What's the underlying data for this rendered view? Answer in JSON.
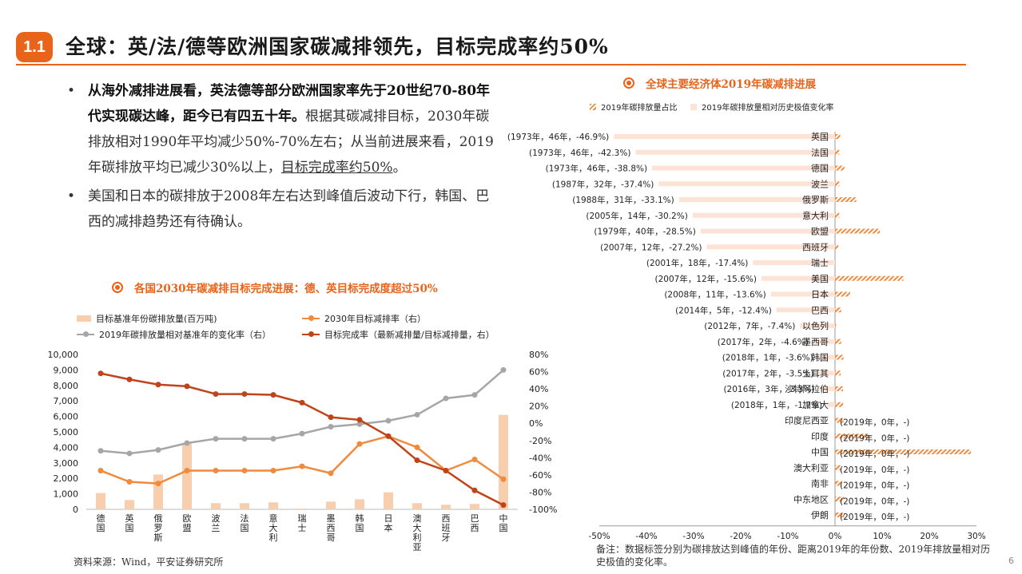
{
  "header": {
    "badge": "1.1",
    "title": "全球：英/法/德等欧洲国家碳减排领先，目标完成率约50%"
  },
  "bullets": {
    "b1_bold": "从海外减排进展看，英法德等部分欧洲国家率先于20世纪70-80年代实现碳达峰，距今已有四五十年。",
    "b1_rest": "根据其碳减排目标，2030年碳排放相对1990年平均减少50%-70%左右；从当前进展来看，2019年碳排放平均已减少30%以上，",
    "b1_underline": "目标完成率约50%",
    "b1_end": "。",
    "b2": "美国和日本的碳排放于2008年左右达到峰值后波动下行，韩国、巴西的减排趋势还有待确认。"
  },
  "left_chart_title": "各国2030年碳减排目标完成进展：德、英目标完成度超过50%",
  "right_chart_title": "全球主要经济体2019年碳减排进展",
  "source": "资料来源：Wind，平安证券研究所",
  "note": "备注：数据标签分别为碳排放达到峰值的年份、距离2019年的年份数、2019年排放量相对历史极值的变化率。",
  "page_number": "6",
  "colors": {
    "accent": "#e8641b",
    "bar_light": "#f7cfae",
    "line_orange": "#f08a3c",
    "line_gray": "#a6a6a6",
    "line_dark": "#c0431a",
    "bar_pink": "#fde3d5"
  },
  "chart_data": [
    {
      "type": "bar",
      "combo": "bar+line",
      "title": "各国2030年碳减排目标完成进展：德、英目标完成度超过50%",
      "categories": [
        "德国",
        "英国",
        "俄罗斯",
        "欧盟",
        "波兰",
        "法国",
        "意大利",
        "瑞士",
        "墨西哥",
        "韩国",
        "日本",
        "澳大利亚",
        "西班牙",
        "巴西",
        "中国"
      ],
      "ylim_left": [
        0,
        10000
      ],
      "yticks_left": [
        "0",
        "1,000",
        "2,000",
        "3,000",
        "4,000",
        "5,000",
        "6,000",
        "7,000",
        "8,000",
        "9,000",
        "10,000"
      ],
      "ylim_right": [
        -100,
        80
      ],
      "yticks_right": [
        "-100%",
        "-80%",
        "-60%",
        "-40%",
        "-20%",
        "0%",
        "20%",
        "40%",
        "60%",
        "80%"
      ],
      "legend_position": "top",
      "series": [
        {
          "name": "目标基准年份碳排放量(百万吨)",
          "kind": "bar",
          "axis": "left",
          "values": [
            1050,
            600,
            2250,
            4300,
            400,
            400,
            450,
            50,
            500,
            650,
            1100,
            400,
            300,
            350,
            6100
          ]
        },
        {
          "name": "2030年目标减排率（右）",
          "kind": "line",
          "axis": "right",
          "values": [
            -55,
            -68,
            -70,
            -55,
            -55,
            -55,
            -55,
            -50,
            -58,
            -24,
            -15,
            -28,
            -55,
            -42,
            -65
          ]
        },
        {
          "name": "2019年碳排放量相对基准年的变化率（右）",
          "kind": "line",
          "axis": "right",
          "values": [
            -32,
            -35,
            -31,
            -23,
            -18,
            -18,
            -18,
            -12,
            -4,
            -1,
            3,
            10,
            29,
            33,
            62
          ]
        },
        {
          "name": "目标完成率（最新减排量/目标减排量，右）",
          "kind": "line",
          "axis": "right",
          "values": [
            58,
            51,
            45,
            43,
            34,
            34,
            33,
            24,
            7,
            4,
            -15,
            -43,
            -55,
            -78,
            -95
          ]
        }
      ]
    },
    {
      "type": "bar",
      "orientation": "horizontal",
      "title": "全球主要经济体2019年碳减排进展",
      "xlim": [
        -50,
        30
      ],
      "xticks": [
        "-50%",
        "-40%",
        "-30%",
        "-20%",
        "-10%",
        "0%",
        "10%",
        "20%",
        "30%"
      ],
      "legend_position": "top-left",
      "categories": [
        "英国",
        "法国",
        "德国",
        "波兰",
        "俄罗斯",
        "意大利",
        "欧盟",
        "西班牙",
        "瑞士",
        "美国",
        "日本",
        "巴西",
        "以色列",
        "墨西哥",
        "韩国",
        "土耳其",
        "沙特阿拉伯",
        "加拿大",
        "印度尼西亚",
        "印度",
        "中国",
        "澳大利亚",
        "南非",
        "中东地区",
        "伊朗"
      ],
      "data_labels": [
        "(1973年，46年，-46.9%)",
        "(1973年，46年，-42.3%)",
        "(1973年，46年，-38.8%)",
        "(1987年，32年，-37.4%)",
        "(1988年，31年，-33.1%)",
        "(2005年，14年，-30.2%)",
        "(1979年，40年，-28.5%)",
        "(2007年，12年，-27.2%)",
        "(2001年，18年，-17.4%)",
        "(2007年，12年，-15.6%)",
        "(2008年，11年，-13.6%)",
        "(2014年，5年，-12.4%)",
        "(2012年，7年，-7.4%)",
        "(2017年，2年，-4.6%)",
        "(2018年，1年，-3.6%)",
        "(2017年，2年，-3.5%)",
        "(2016年，3年，-3.3%)",
        "(2018年，1年，-1.7%)",
        "(2019年，0年，-)",
        "(2019年，0年，-)",
        "(2019年，0年，-)",
        "(2019年，0年，-)",
        "(2019年，0年，-)",
        "(2019年，0年，-)",
        "(2019年，0年，-)"
      ],
      "series": [
        {
          "name": "2019年碳排放量占比",
          "pattern": "hatch",
          "values": [
            1.1,
            0.9,
            2.0,
            0.9,
            4.5,
            0.9,
            9.5,
            0.7,
            0.1,
            14.5,
            3.2,
            1.3,
            0.2,
            1.3,
            1.8,
            1.2,
            1.7,
            1.7,
            1.8,
            7.3,
            28.8,
            1.2,
            1.4,
            1.9,
            2.0
          ]
        },
        {
          "name": "2019年碳排放量相对历史极值变化率",
          "values": [
            -46.9,
            -42.3,
            -38.8,
            -37.4,
            -33.1,
            -30.2,
            -28.5,
            -27.2,
            -17.4,
            -15.6,
            -13.6,
            -12.4,
            -7.4,
            -4.6,
            -3.6,
            -3.5,
            -3.3,
            -1.7,
            0,
            0,
            0,
            0,
            0,
            0,
            0
          ]
        }
      ]
    }
  ]
}
